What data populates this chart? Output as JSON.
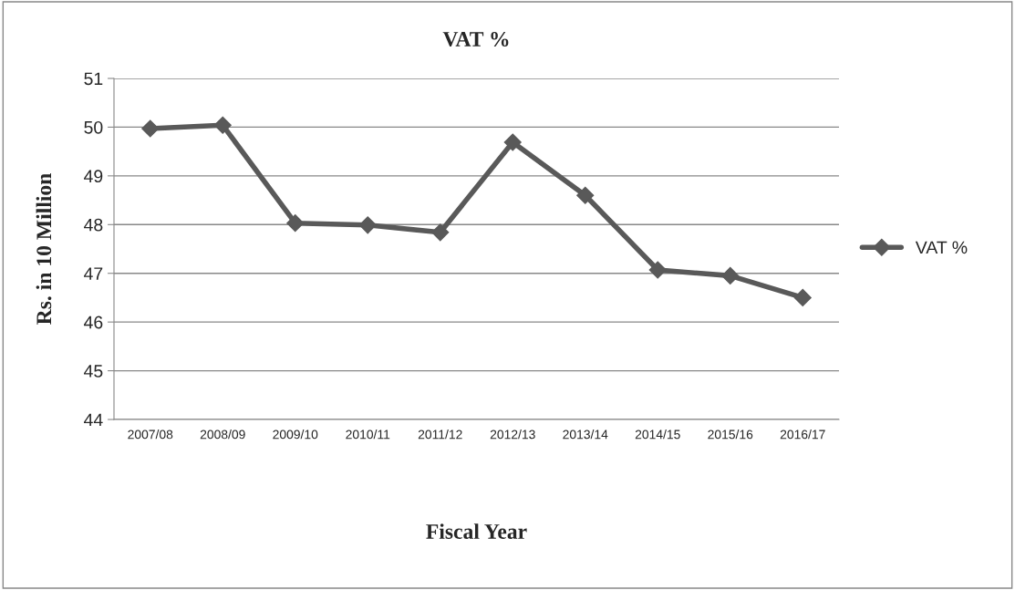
{
  "chart_data": {
    "type": "line",
    "title": "VAT %",
    "xlabel": "Fiscal Year",
    "ylabel": "Rs. in 10 Million",
    "categories": [
      "2007/08",
      "2008/09",
      "2009/10",
      "2010/11",
      "2011/12",
      "2012/13",
      "2013/14",
      "2014/15",
      "2015/16",
      "2016/17"
    ],
    "series": [
      {
        "name": "VAT %",
        "color": "#595959",
        "values": [
          49.97,
          50.04,
          48.03,
          47.99,
          47.84,
          49.69,
          48.6,
          47.07,
          46.95,
          46.5
        ]
      }
    ],
    "ylim": [
      44,
      51
    ],
    "yticks": [
      44,
      45,
      46,
      47,
      48,
      49,
      50,
      51
    ],
    "grid": "y",
    "legend": "right",
    "marker": "diamond",
    "line_style": "solid"
  }
}
